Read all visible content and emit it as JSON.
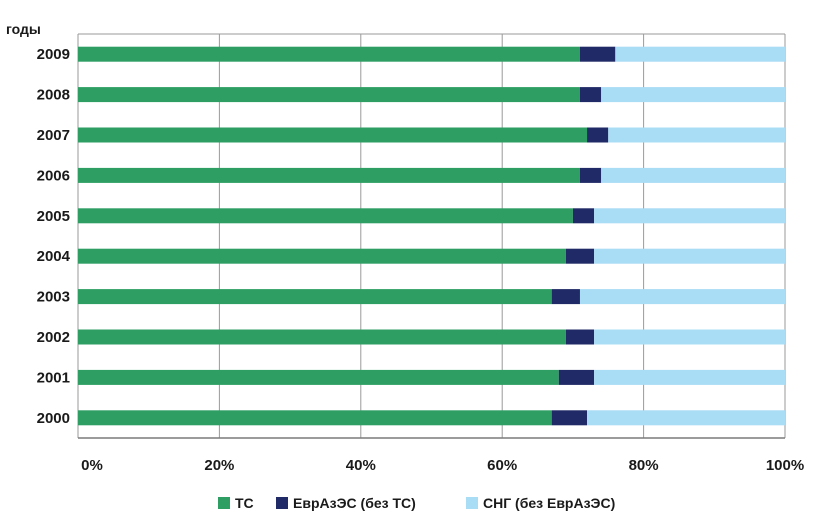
{
  "chart_data": {
    "type": "bar",
    "orientation": "horizontal",
    "stacked": "percent",
    "ylabel": "годы",
    "categories": [
      "2000",
      "2001",
      "2002",
      "2003",
      "2004",
      "2005",
      "2006",
      "2007",
      "2008",
      "2009"
    ],
    "series": [
      {
        "name": "ТС",
        "color": "#2e9e63",
        "values": [
          67,
          68,
          69,
          67,
          69,
          70,
          71,
          72,
          71,
          71
        ]
      },
      {
        "name": "ЕврАзЭС (без ТС)",
        "color": "#1f2a66",
        "values": [
          5,
          5,
          4,
          4,
          4,
          3,
          3,
          3,
          3,
          5
        ]
      },
      {
        "name": "СНГ (без ЕврАзЭС)",
        "color": "#a9dcf5",
        "values": [
          28,
          27,
          27,
          29,
          27,
          27,
          26,
          25,
          26,
          24
        ]
      }
    ],
    "xlim": [
      0,
      100
    ],
    "xticks": [
      "0%",
      "20%",
      "40%",
      "60%",
      "80%",
      "100%"
    ],
    "grid": true,
    "legend_position": "bottom"
  }
}
